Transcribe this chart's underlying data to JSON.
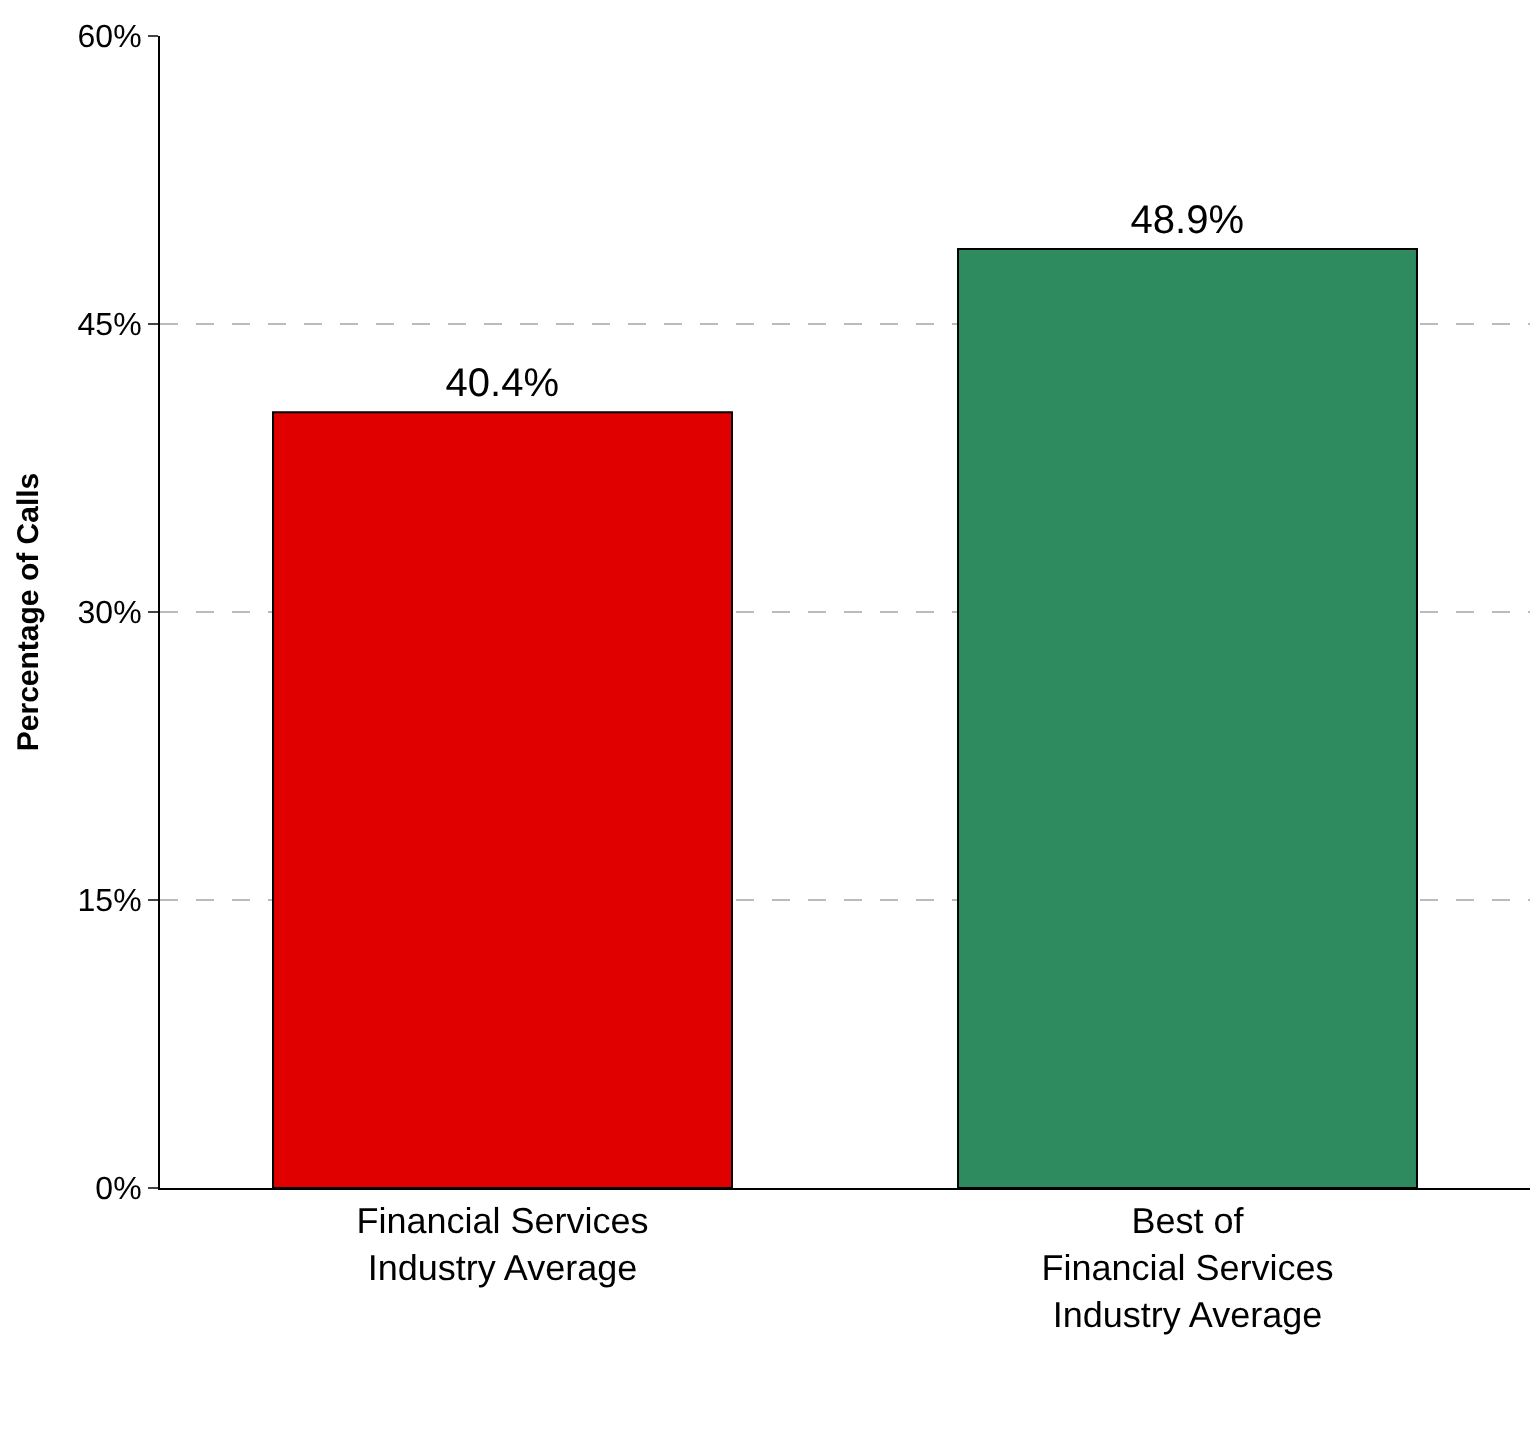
{
  "chart_data": {
    "type": "bar",
    "ylabel": "Percentage of Calls",
    "categories": [
      "Financial Services\nIndustry Average",
      "Best of\nFinancial Services\nIndustry Average"
    ],
    "values": [
      40.4,
      48.9
    ],
    "colors": [
      "#e00000",
      "#2e8b5f"
    ],
    "value_labels": [
      "40.4%",
      "48.9%"
    ],
    "ylim": [
      0,
      60
    ],
    "yticks": [
      {
        "value": 0,
        "label": "0%"
      },
      {
        "value": 15,
        "label": "15%"
      },
      {
        "value": 30,
        "label": "30%"
      },
      {
        "value": 45,
        "label": "45%"
      },
      {
        "value": 60,
        "label": "60%"
      }
    ],
    "grid": "y"
  }
}
